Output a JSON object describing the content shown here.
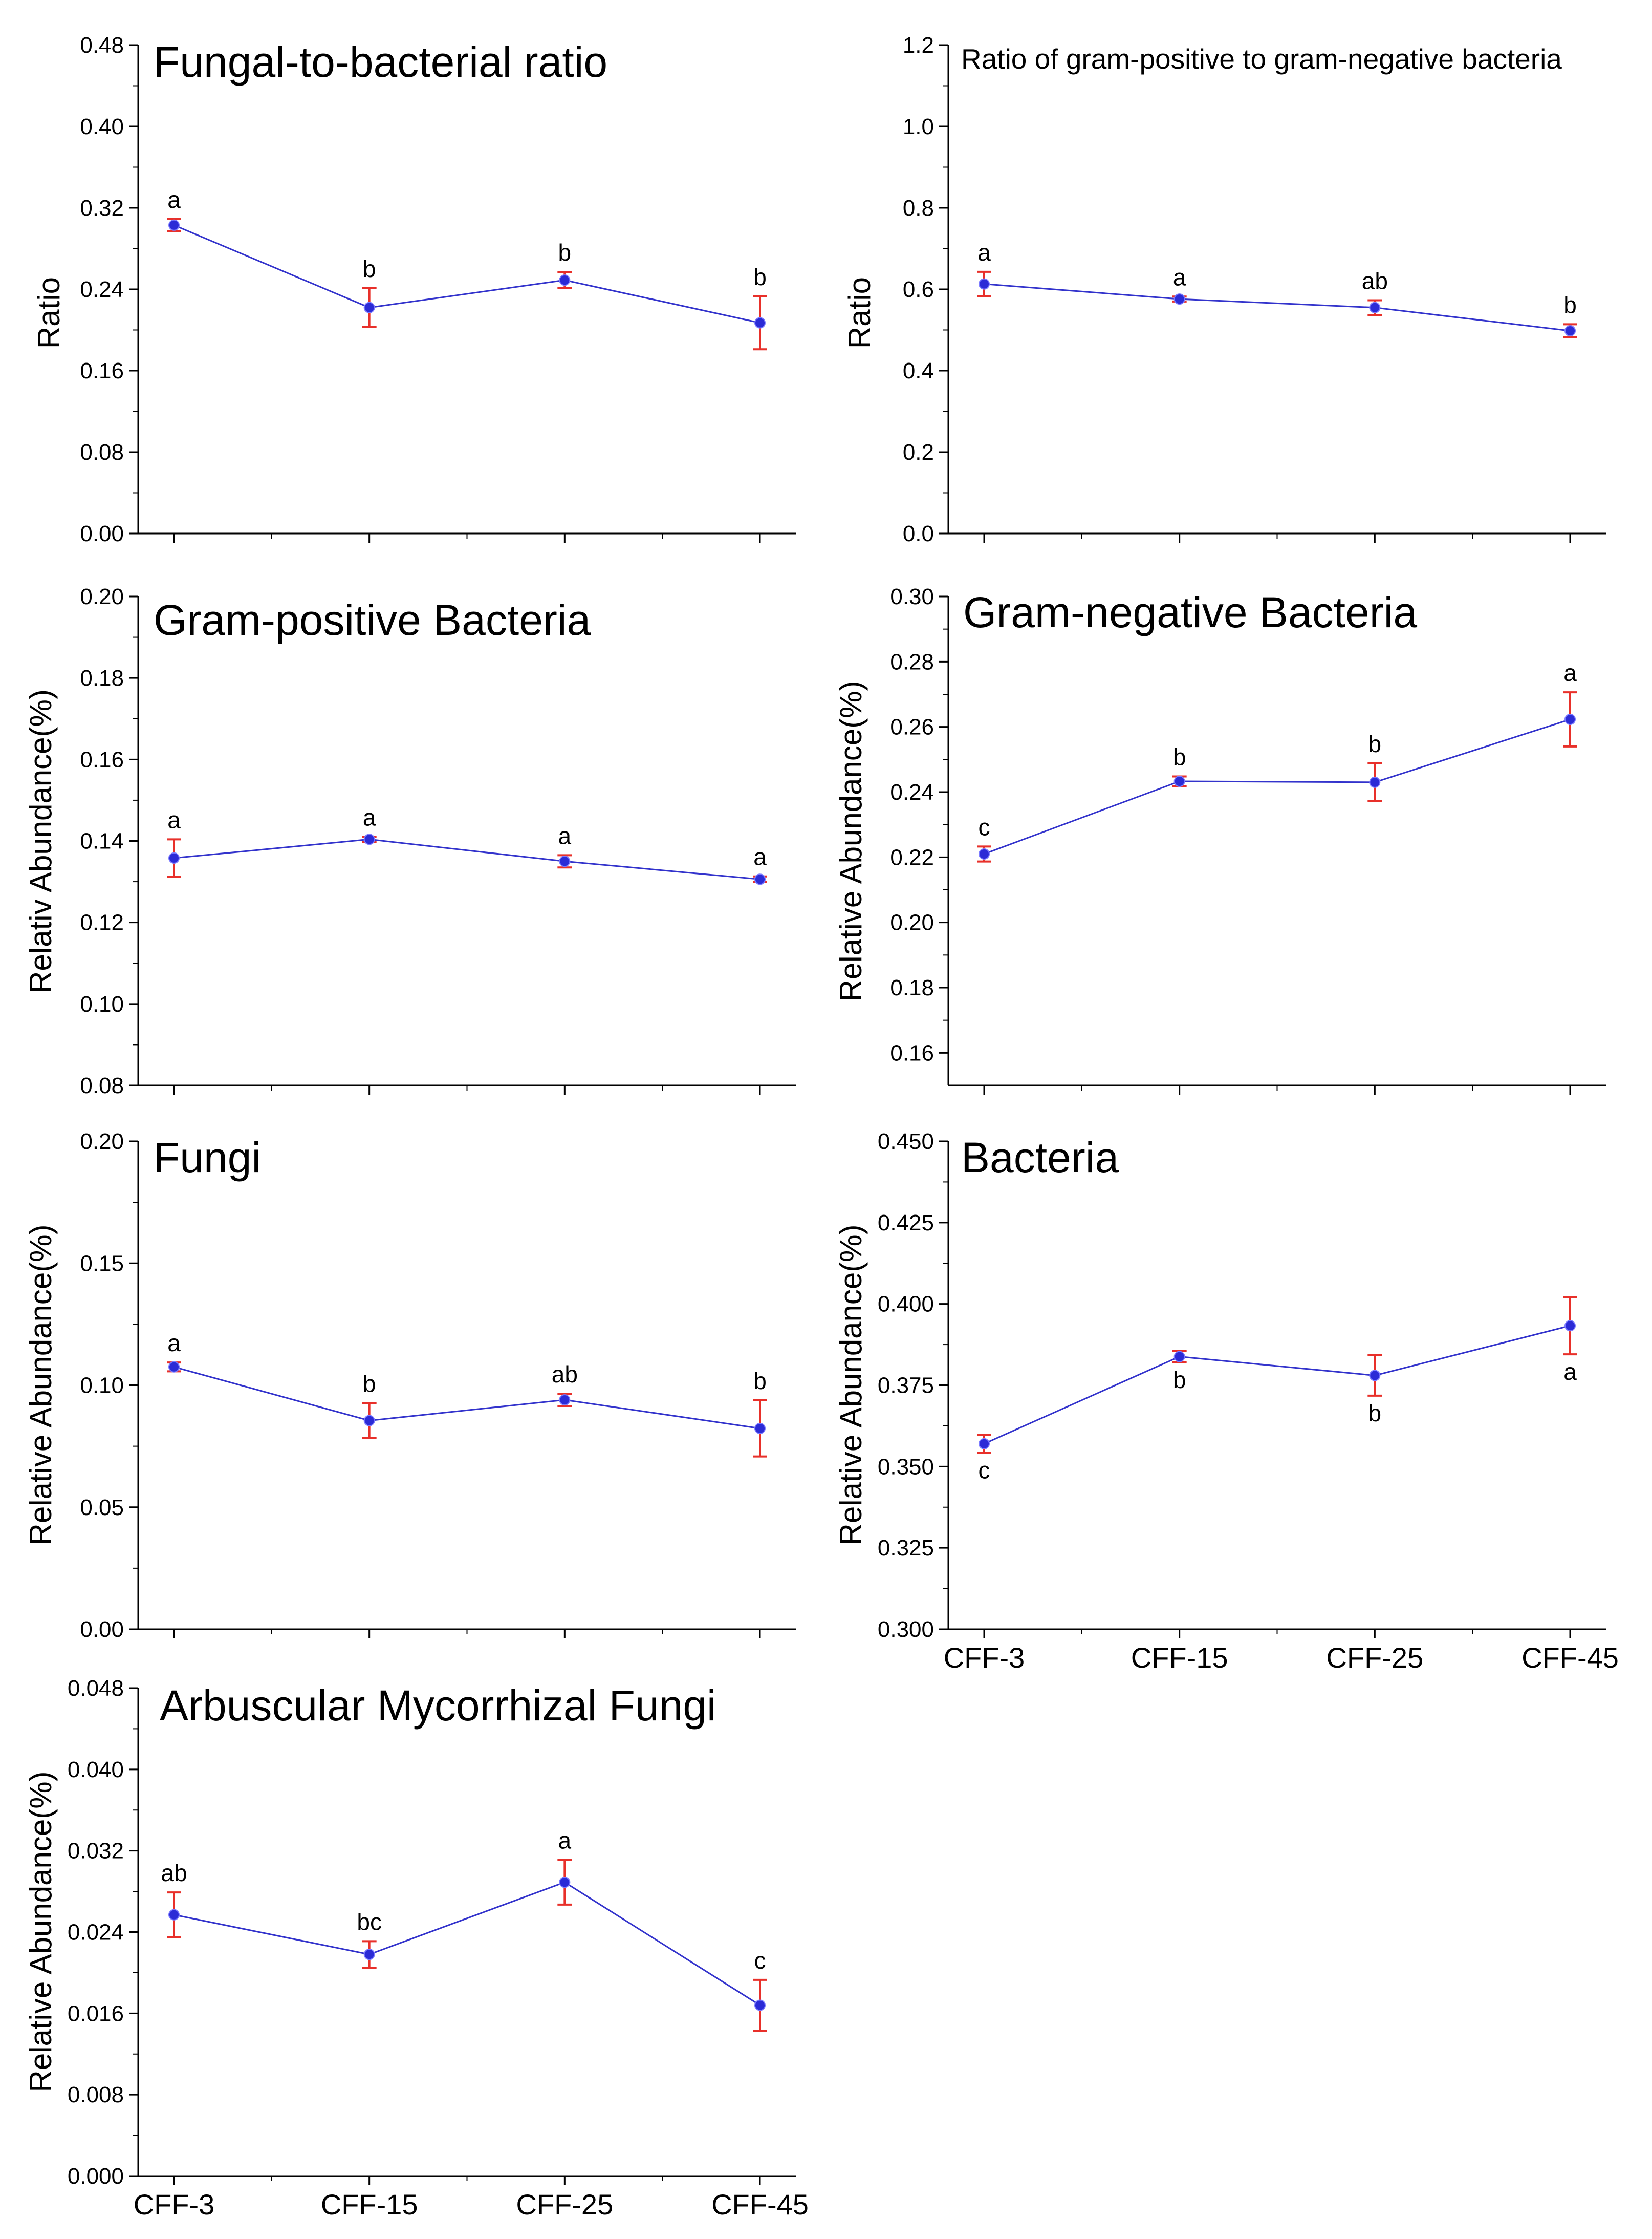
{
  "colors": {
    "line": "#3333cc",
    "errorbar": "#e8302a",
    "point": "#2b2bd6",
    "axis": "#000000"
  },
  "chart_data": [
    {
      "id": "fb_ratio",
      "type": "line",
      "title": "Fungal-to-bacterial ratio",
      "ylabel": "Ratio",
      "xlabel": "",
      "categories": [
        "CFF-3",
        "CFF-15",
        "CFF-25",
        "CFF-45"
      ],
      "values": [
        0.303,
        0.222,
        0.249,
        0.207
      ],
      "errors": [
        0.006,
        0.019,
        0.008,
        0.026
      ],
      "significance": [
        "a",
        "b",
        "b",
        "b"
      ],
      "ylim": [
        0,
        0.48
      ],
      "yticks": [
        "0.00",
        "0.08",
        "0.16",
        "0.24",
        "0.32",
        "0.40",
        "0.48"
      ],
      "show_xlabels": false
    },
    {
      "id": "gp_gn_ratio",
      "type": "line",
      "title": "Ratio of gram-positive to gram-negative bacteria",
      "ylabel": "Ratio",
      "xlabel": "",
      "categories": [
        "CFF-3",
        "CFF-15",
        "CFF-25",
        "CFF-45"
      ],
      "values": [
        0.613,
        0.576,
        0.555,
        0.498
      ],
      "errors": [
        0.03,
        0.006,
        0.018,
        0.016
      ],
      "significance": [
        "a",
        "a",
        "ab",
        "b"
      ],
      "ylim": [
        0,
        1.2
      ],
      "yticks": [
        "0.0",
        "0.2",
        "0.4",
        "0.6",
        "0.8",
        "1.0",
        "1.2"
      ],
      "show_xlabels": false
    },
    {
      "id": "gram_positive",
      "type": "line",
      "title": "Gram-positive Bacteria",
      "ylabel": "Relativ Abundance(%)",
      "xlabel": "",
      "categories": [
        "CFF-3",
        "CFF-15",
        "CFF-25",
        "CFF-45"
      ],
      "values": [
        0.1358,
        0.1404,
        0.135,
        0.1306
      ],
      "errors": [
        0.0046,
        0.0006,
        0.0015,
        0.0007
      ],
      "significance": [
        "a",
        "a",
        "a",
        "a"
      ],
      "ylim": [
        0.08,
        0.2
      ],
      "yticks": [
        "0.08",
        "0.10",
        "0.12",
        "0.14",
        "0.16",
        "0.18",
        "0.20"
      ],
      "show_xlabels": false
    },
    {
      "id": "gram_negative",
      "type": "line",
      "title": "Gram-negative Bacteria",
      "ylabel": "Relative Abundance(%)",
      "xlabel": "",
      "categories": [
        "CFF-3",
        "CFF-15",
        "CFF-25",
        "CFF-45"
      ],
      "values": [
        0.221,
        0.2433,
        0.243,
        0.2623
      ],
      "errors": [
        0.0023,
        0.0015,
        0.0058,
        0.0083
      ],
      "significance": [
        "c",
        "b",
        "b",
        "a"
      ],
      "ylim": [
        0.15,
        0.3
      ],
      "yticks": [
        "0.16",
        "0.18",
        "0.20",
        "0.22",
        "0.24",
        "0.26",
        "0.28",
        "0.30"
      ],
      "show_xlabels": false
    },
    {
      "id": "fungi",
      "type": "line",
      "title": "Fungi",
      "ylabel": "Relative Abundance(%)",
      "xlabel": "",
      "categories": [
        "CFF-3",
        "CFF-15",
        "CFF-25",
        "CFF-45"
      ],
      "values": [
        0.1075,
        0.0855,
        0.094,
        0.0823
      ],
      "errors": [
        0.0018,
        0.0072,
        0.0025,
        0.0115
      ],
      "significance": [
        "a",
        "b",
        "ab",
        "b"
      ],
      "ylim": [
        0,
        0.2
      ],
      "yticks": [
        "0.00",
        "0.05",
        "0.10",
        "0.15",
        "0.20"
      ],
      "show_xlabels": false
    },
    {
      "id": "bacteria",
      "type": "line",
      "title": "Bacteria",
      "ylabel": "Relative Abundance(%)",
      "xlabel": "",
      "categories": [
        "CFF-3",
        "CFF-15",
        "CFF-25",
        "CFF-45"
      ],
      "values": [
        0.357,
        0.3838,
        0.378,
        0.3933
      ],
      "errors": [
        0.0028,
        0.0018,
        0.0062,
        0.0088
      ],
      "significance": [
        "c",
        "b",
        "b",
        "a"
      ],
      "ylim": [
        0.3,
        0.45
      ],
      "yticks": [
        "0.300",
        "0.325",
        "0.350",
        "0.375",
        "0.400",
        "0.425",
        "0.450"
      ],
      "show_xlabels": true
    },
    {
      "id": "amf",
      "type": "line",
      "title": "Arbuscular Mycorrhizal Fungi",
      "ylabel": "Relative Abundance(%)",
      "xlabel": "",
      "categories": [
        "CFF-3",
        "CFF-15",
        "CFF-25",
        "CFF-45"
      ],
      "values": [
        0.0257,
        0.0218,
        0.0289,
        0.0168
      ],
      "errors": [
        0.0022,
        0.0013,
        0.0022,
        0.0025
      ],
      "significance": [
        "ab",
        "bc",
        "a",
        "c"
      ],
      "ylim": [
        0,
        0.048
      ],
      "yticks": [
        "0.000",
        "0.008",
        "0.016",
        "0.024",
        "0.032",
        "0.040",
        "0.048"
      ],
      "show_xlabels": true
    }
  ]
}
